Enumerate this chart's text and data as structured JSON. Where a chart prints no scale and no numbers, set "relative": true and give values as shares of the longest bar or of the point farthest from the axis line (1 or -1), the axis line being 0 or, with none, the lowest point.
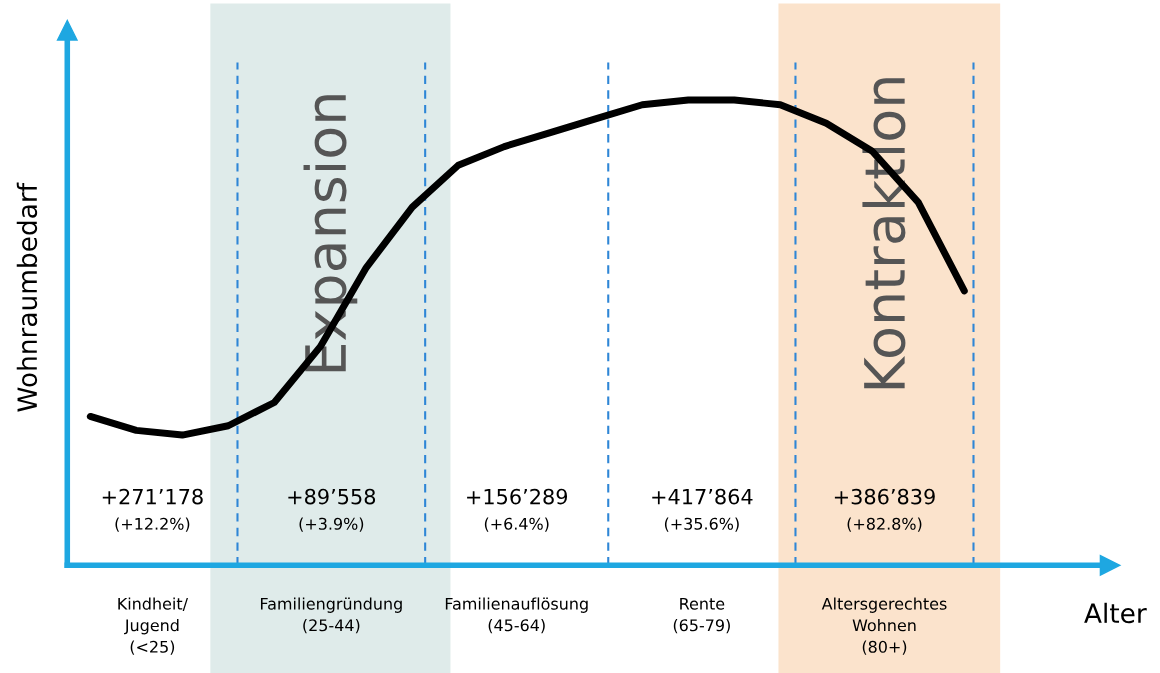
{
  "chart_data": {
    "type": "line",
    "relative": true,
    "xlabel": "Alter",
    "ylabel": "Wohnraumbedarf",
    "categories": [
      null,
      null,
      null,
      null,
      null,
      null,
      null,
      null,
      null,
      null,
      null,
      null,
      null,
      null,
      null,
      null,
      null,
      null,
      null,
      null
    ],
    "series": [
      {
        "color": "#000000",
        "values": [
          0.32,
          0.29,
          0.28,
          0.3,
          0.35,
          0.47,
          0.64,
          0.77,
          0.86,
          0.9,
          0.93,
          0.96,
          0.99,
          1.0,
          1.0,
          0.99,
          0.95,
          0.89,
          0.78,
          0.59
        ]
      }
    ],
    "marker": "none",
    "line_style": "solid",
    "legend": false,
    "tick_labels": false,
    "annotations": [
      "+271’178",
      "(+12.2%)",
      "Kindheit/\nJugend\n(<25)",
      "+89’558",
      "(+3.9%)",
      "Familiengründung\n(25-44)",
      "+156’289",
      "(+6.4%)",
      "Familienauflösung\n(45-64)",
      "+417’864",
      "(+35.6%)",
      "Rente\n(65-79)",
      "+386’839",
      "(+82.8%)",
      "Altersgerechtes\nWohnen\n(80+)",
      "Expansion",
      "Kontraktion"
    ]
  }
}
